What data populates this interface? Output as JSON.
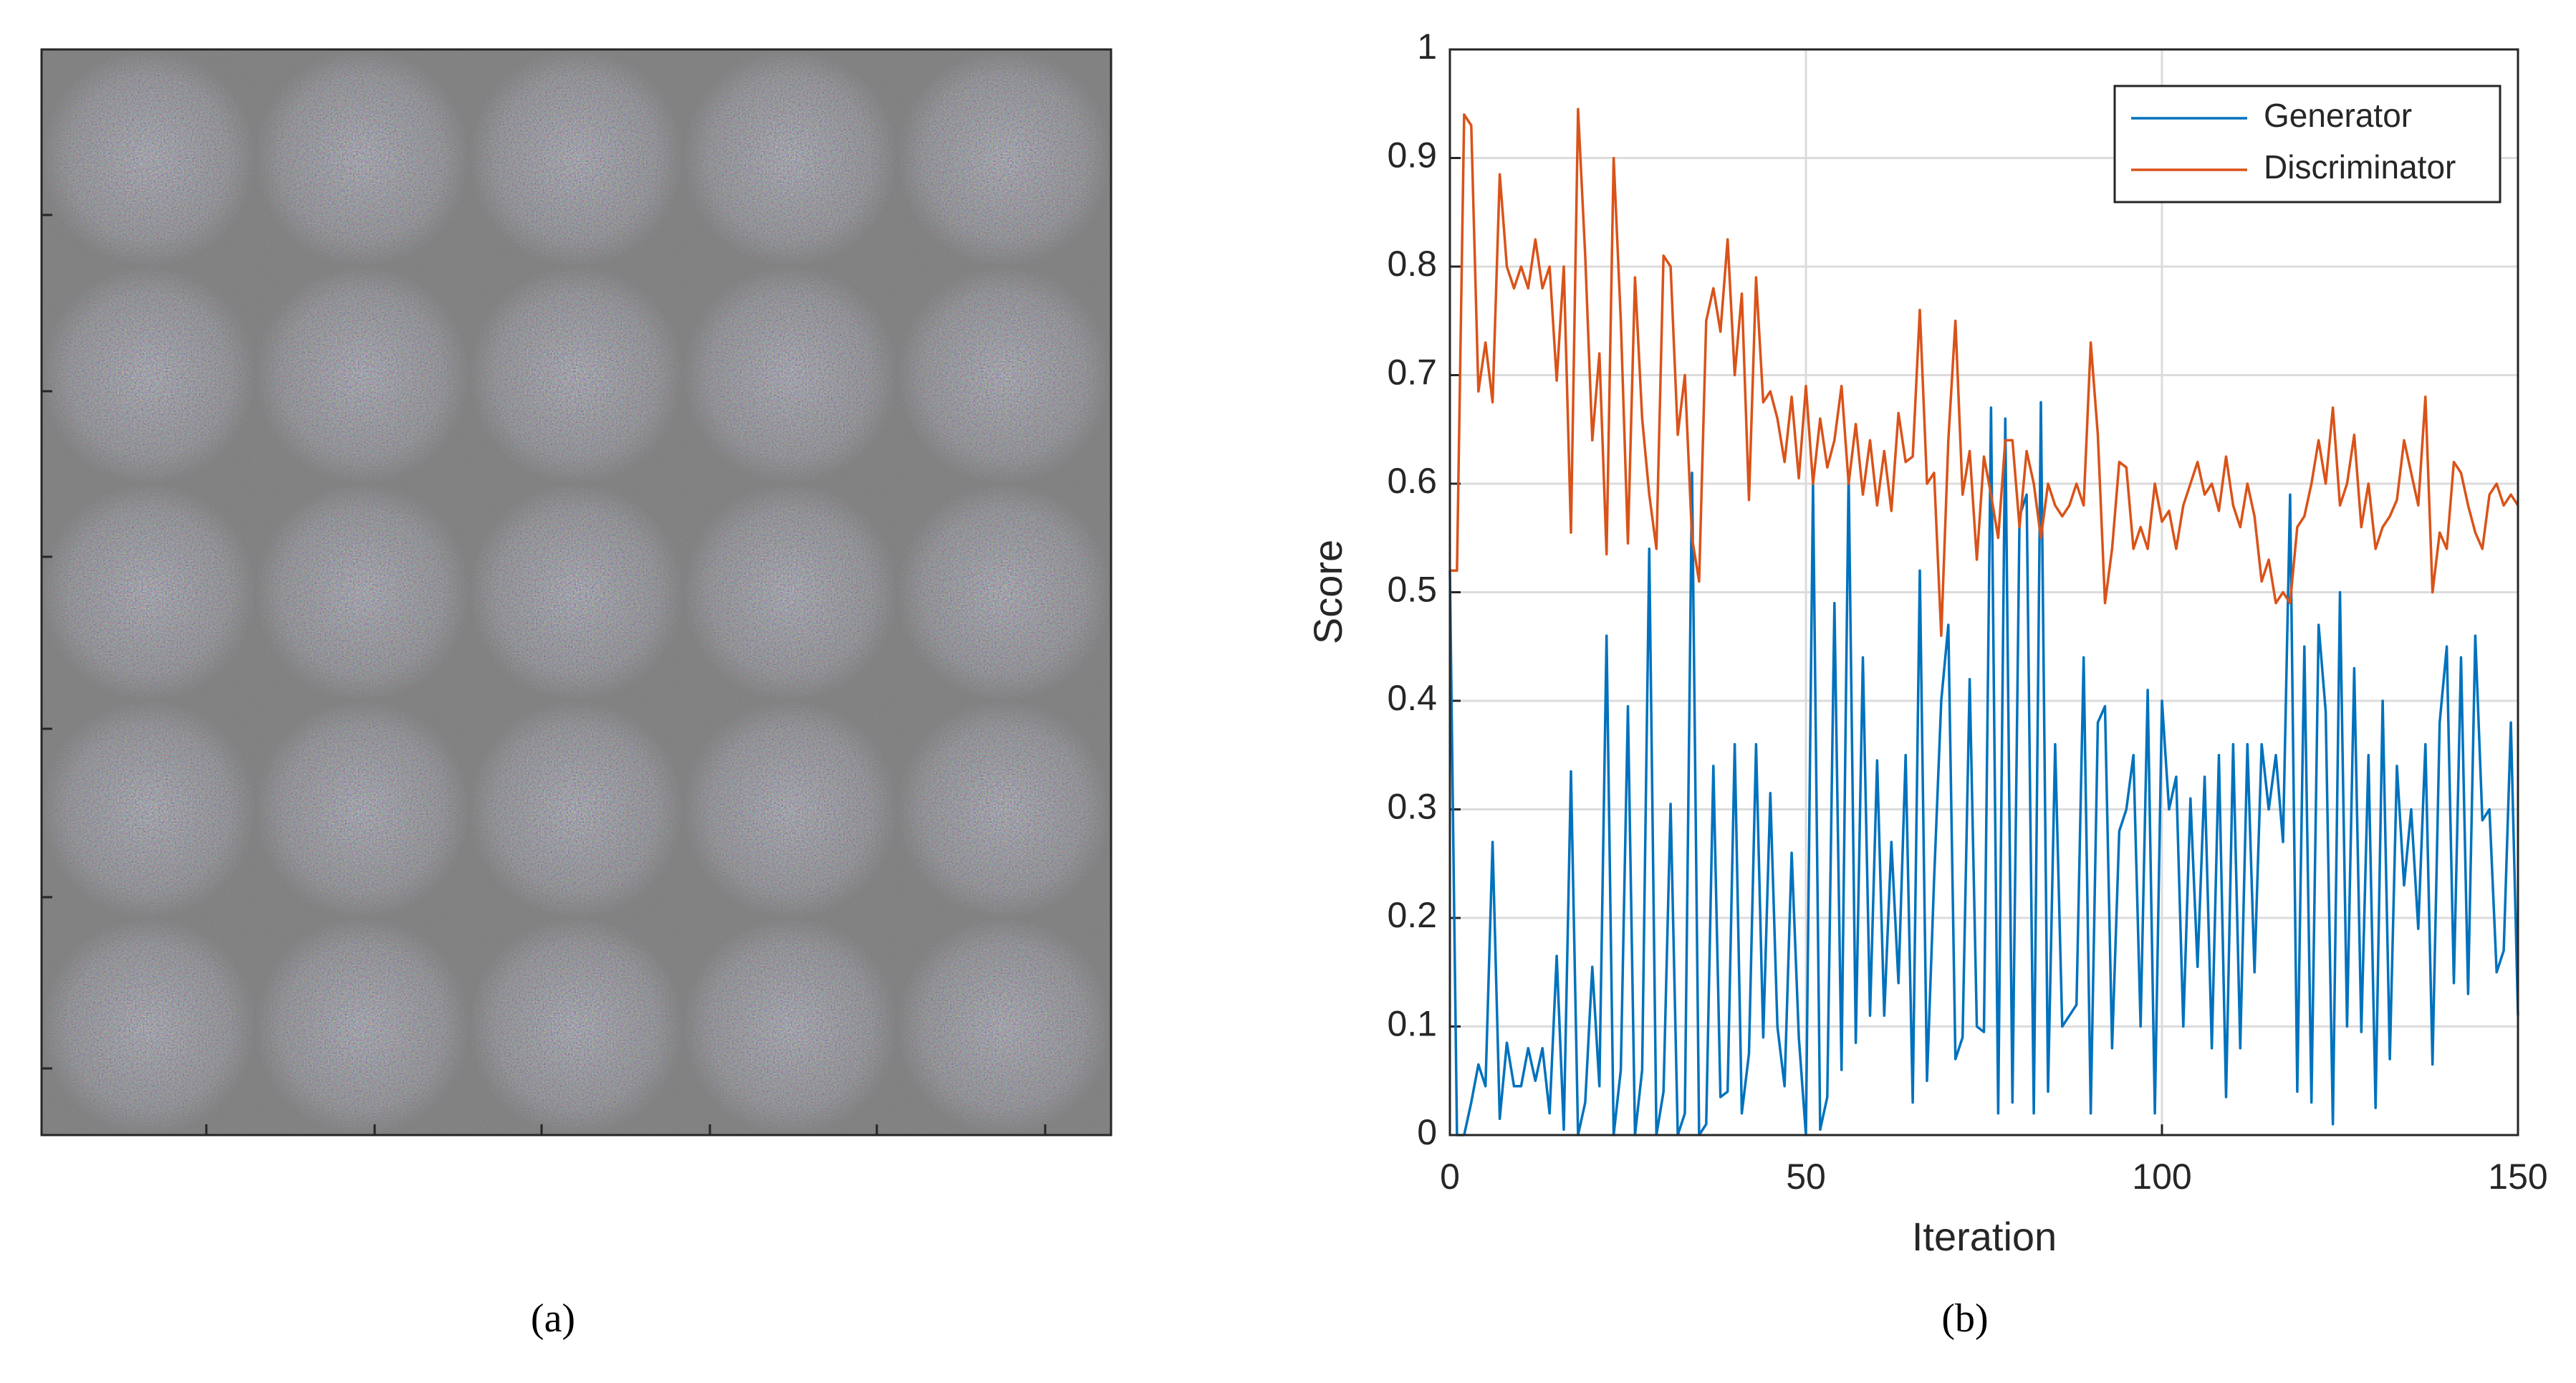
{
  "panel_labels": [
    "(a)",
    "(b)"
  ],
  "chart_data": {
    "type": "line",
    "xlabel": "Iteration",
    "ylabel": "Score",
    "x": [
      0,
      1,
      2,
      3,
      4,
      5,
      6,
      7,
      8,
      9,
      10,
      11,
      12,
      13,
      14,
      15,
      16,
      17,
      18,
      19,
      20,
      21,
      22,
      23,
      24,
      25,
      26,
      27,
      28,
      29,
      30,
      31,
      32,
      33,
      34,
      35,
      36,
      37,
      38,
      39,
      40,
      41,
      42,
      43,
      44,
      45,
      46,
      47,
      48,
      49,
      50,
      51,
      52,
      53,
      54,
      55,
      56,
      57,
      58,
      59,
      60,
      61,
      62,
      63,
      64,
      65,
      66,
      67,
      68,
      69,
      70,
      71,
      72,
      73,
      74,
      75,
      76,
      77,
      78,
      79,
      80,
      81,
      82,
      83,
      84,
      85,
      86,
      87,
      88,
      89,
      90,
      91,
      92,
      93,
      94,
      95,
      96,
      97,
      98,
      99,
      100,
      101,
      102,
      103,
      104,
      105,
      106,
      107,
      108,
      109,
      110,
      111,
      112,
      113,
      114,
      115,
      116,
      117,
      118,
      119,
      120,
      121,
      122,
      123,
      124,
      125,
      126,
      127,
      128,
      129,
      130,
      131,
      132,
      133,
      134,
      135,
      136,
      137,
      138,
      139,
      140,
      141,
      142,
      143,
      144,
      145,
      146,
      147,
      148,
      149,
      150
    ],
    "series": [
      {
        "name": "Generator",
        "color": "#0072bd",
        "values": [
          0.52,
          0,
          0,
          0.03,
          0.065,
          0.045,
          0.27,
          0.015,
          0.085,
          0.045,
          0.045,
          0.08,
          0.05,
          0.08,
          0.02,
          0.165,
          0.005,
          0.335,
          0,
          0.03,
          0.155,
          0.045,
          0.46,
          0,
          0.06,
          0.395,
          0,
          0.06,
          0.54,
          0,
          0.04,
          0.305,
          0,
          0.02,
          0.61,
          0,
          0.01,
          0.34,
          0.035,
          0.04,
          0.36,
          0.02,
          0.075,
          0.36,
          0.09,
          0.315,
          0.1,
          0.045,
          0.26,
          0.09,
          0,
          0.6,
          0.005,
          0.035,
          0.49,
          0.06,
          0.61,
          0.085,
          0.44,
          0.11,
          0.345,
          0.11,
          0.27,
          0.14,
          0.35,
          0.03,
          0.52,
          0.05,
          0.235,
          0.4,
          0.47,
          0.07,
          0.09,
          0.42,
          0.1,
          0.095,
          0.67,
          0.02,
          0.66,
          0.03,
          0.57,
          0.59,
          0.02,
          0.675,
          0.04,
          0.36,
          0.1,
          0.11,
          0.12,
          0.44,
          0.02,
          0.38,
          0.395,
          0.08,
          0.28,
          0.3,
          0.35,
          0.1,
          0.41,
          0.02,
          0.4,
          0.3,
          0.33,
          0.1,
          0.31,
          0.155,
          0.33,
          0.08,
          0.35,
          0.035,
          0.36,
          0.08,
          0.36,
          0.15,
          0.36,
          0.3,
          0.35,
          0.27,
          0.59,
          0.04,
          0.45,
          0.03,
          0.47,
          0.39,
          0.01,
          0.5,
          0.1,
          0.43,
          0.095,
          0.35,
          0.025,
          0.4,
          0.07,
          0.34,
          0.23,
          0.3,
          0.19,
          0.36,
          0.065,
          0.38,
          0.45,
          0.14,
          0.44,
          0.13,
          0.46,
          0.29,
          0.3,
          0.15,
          0.17,
          0.38,
          0.11
        ]
      },
      {
        "name": "Discriminator",
        "color": "#d95319",
        "values": [
          0.52,
          0.52,
          0.94,
          0.93,
          0.685,
          0.73,
          0.675,
          0.885,
          0.8,
          0.78,
          0.8,
          0.78,
          0.825,
          0.78,
          0.8,
          0.695,
          0.8,
          0.555,
          0.945,
          0.81,
          0.64,
          0.72,
          0.535,
          0.9,
          0.75,
          0.545,
          0.79,
          0.66,
          0.59,
          0.54,
          0.81,
          0.8,
          0.645,
          0.7,
          0.55,
          0.51,
          0.75,
          0.78,
          0.74,
          0.825,
          0.7,
          0.775,
          0.585,
          0.79,
          0.675,
          0.685,
          0.66,
          0.62,
          0.68,
          0.605,
          0.69,
          0.6,
          0.66,
          0.615,
          0.64,
          0.69,
          0.6,
          0.655,
          0.59,
          0.64,
          0.58,
          0.63,
          0.575,
          0.665,
          0.62,
          0.625,
          0.76,
          0.6,
          0.61,
          0.46,
          0.64,
          0.75,
          0.59,
          0.63,
          0.53,
          0.625,
          0.59,
          0.55,
          0.64,
          0.64,
          0.56,
          0.63,
          0.6,
          0.55,
          0.6,
          0.58,
          0.57,
          0.58,
          0.6,
          0.58,
          0.73,
          0.645,
          0.49,
          0.54,
          0.62,
          0.615,
          0.54,
          0.56,
          0.54,
          0.6,
          0.565,
          0.575,
          0.54,
          0.58,
          0.6,
          0.62,
          0.59,
          0.6,
          0.575,
          0.625,
          0.58,
          0.56,
          0.6,
          0.57,
          0.51,
          0.53,
          0.49,
          0.5,
          0.49,
          0.56,
          0.57,
          0.6,
          0.64,
          0.6,
          0.67,
          0.58,
          0.6,
          0.645,
          0.56,
          0.6,
          0.54,
          0.56,
          0.57,
          0.585,
          0.64,
          0.61,
          0.58,
          0.68,
          0.5,
          0.555,
          0.54,
          0.62,
          0.61,
          0.58,
          0.555,
          0.54,
          0.59,
          0.6,
          0.58,
          0.59,
          0.58
        ]
      }
    ],
    "xlim": [
      0,
      150
    ],
    "ylim": [
      0,
      1
    ],
    "xticks": [
      0,
      50,
      100,
      150
    ],
    "yticks": [
      0,
      0.1,
      0.2,
      0.3,
      0.4,
      0.5,
      0.6,
      0.7,
      0.8,
      0.9,
      1
    ],
    "grid": true,
    "legend": "upper right"
  }
}
